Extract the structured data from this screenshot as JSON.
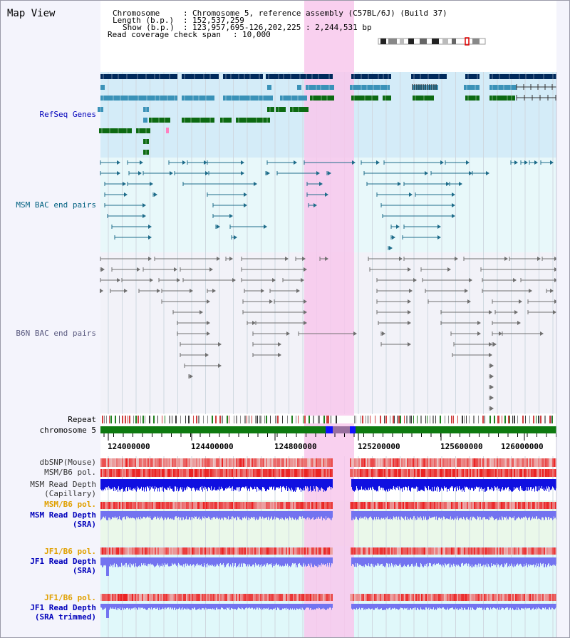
{
  "title": "Map View",
  "header": {
    "chromosome_key": "Chromosome",
    "chromosome_val": "Chromosome 5, reference assembly (C57BL/6J) (Build 37)",
    "length_key": "Length (b.p.)",
    "length_val": "152,537,259",
    "show_key": "Show (b.p.)",
    "show_val": "123,957,695-126,202,225 : 2,244,531 bp",
    "span_key": "Read coverage check span",
    "span_val": "10,000"
  },
  "tracks": {
    "refseq": "RefSeq Genes",
    "msm_bac": "MSM BAC end pairs",
    "b6n_bac": "B6N BAC end pairs",
    "repeat": "Repeat",
    "chromosome": "chromosome 5",
    "dbsnp": "dbSNP(Mouse)",
    "msm_pol": "MSM/B6 pol.",
    "msm_depth_cap_1": "MSM Read Depth",
    "msm_depth_cap_2": "(Capillary)",
    "msm_pol_sra": "MSM/B6 pol.",
    "msm_depth_sra_1": "MSM Read Depth",
    "msm_depth_sra_2": "(SRA)",
    "jf1_pol": "JF1/B6 pol.",
    "jf1_depth_1": "JF1 Read Depth",
    "jf1_depth_2": "(SRA)",
    "jf1_pol_trim": "JF1/B6 pol.",
    "jf1_trim_1": "JF1 Read Depth",
    "jf1_trim_2": "(SRA trimmed)"
  },
  "axis": {
    "ticks": [
      "124000000",
      "124400000",
      "124800000",
      "125200000",
      "125600000",
      "126000000"
    ]
  },
  "colors": {
    "highlight": "#f8c8ec",
    "refseq_bg": "#d4ecf8",
    "gene_dark": "#002a5c",
    "gene_mid": "#3a92b8",
    "gene_green": "#0c6a12",
    "msm_pair": "#1e6c8a",
    "b6n_pair": "#707070",
    "depth_capillary": "#1010e0",
    "depth_sra": "#7373f0",
    "pol_red": "#e02020",
    "label_blue": "#0000bb",
    "label_teal": "#006080",
    "label_orange": "#e0a000"
  }
}
